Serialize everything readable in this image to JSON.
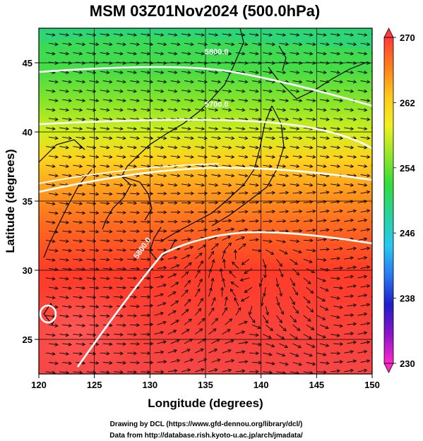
{
  "figure": {
    "title": "MSM 03Z01Nov2024 (500.0hPa)",
    "x_axis_label": "Longitude (degrees)",
    "y_axis_label": "Latitude  (degrees)",
    "credits": [
      "Drawing by DCL (https://www.gfd-dennou.org/library/dcl/)",
      "Data from http://database.rish.kyoto-u.ac.jp/arch/jmadata/"
    ]
  },
  "map": {
    "lon_range": [
      120,
      150
    ],
    "lat_range": [
      22.5,
      47.5
    ],
    "lon_ticks": [
      120,
      125,
      130,
      135,
      140,
      145,
      150
    ],
    "lat_ticks": [
      25,
      30,
      35,
      40,
      45
    ],
    "grid": true,
    "background_field": "temperature (shaded)",
    "vector_field": "wind arrows",
    "cyclone_center": {
      "lon": 138.5,
      "lat": 26.8
    }
  },
  "colorbar": {
    "min": 230,
    "max": 270,
    "labels": [
      "270",
      "262",
      "254",
      "246",
      "238",
      "230"
    ],
    "colors": [
      "#ff3b3b",
      "#ff7f1a",
      "#ffc81e",
      "#f0f020",
      "#96e628",
      "#32dc3c",
      "#28d2a0",
      "#28c8f0",
      "#2878f0",
      "#1e1ec8",
      "#8c14c8",
      "#ff28c8"
    ]
  },
  "contours": [
    {
      "label": "5800.0",
      "label_lon": 136,
      "label_lat": 45.6
    },
    {
      "label": "5700.0",
      "label_lon": 136,
      "label_lat": 41.8
    },
    {
      "label": "5800.0",
      "label_lon": 129.5,
      "label_lat": 31.5
    }
  ]
}
